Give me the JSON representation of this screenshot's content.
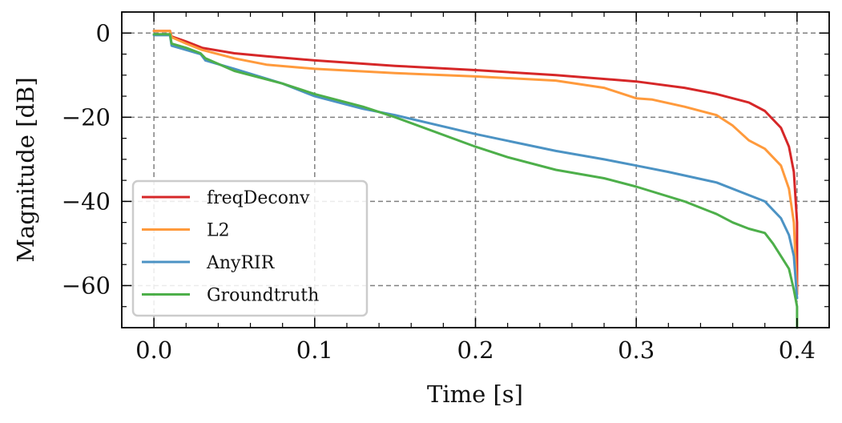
{
  "chart_data": {
    "type": "line",
    "title": "",
    "xlabel": "Time [s]",
    "ylabel": "Magnitude [dB]",
    "xlim": [
      -0.02,
      0.42
    ],
    "ylim": [
      -70,
      5
    ],
    "xticks": [
      0.0,
      0.1,
      0.2,
      0.3,
      0.4
    ],
    "xtick_labels": [
      "0.0",
      "0.1",
      "0.2",
      "0.3",
      "0.4"
    ],
    "yticks": [
      0,
      -20,
      -40,
      -60
    ],
    "ytick_labels": [
      "0",
      "−20",
      "−40",
      "−60"
    ],
    "grid": true,
    "legend_position": "bottom-left",
    "series": [
      {
        "name": "freqDeconv",
        "color": "#d62728",
        "x": [
          0.0,
          0.01,
          0.011,
          0.02,
          0.03,
          0.05,
          0.07,
          0.1,
          0.15,
          0.2,
          0.25,
          0.3,
          0.33,
          0.35,
          0.37,
          0.38,
          0.39,
          0.395,
          0.398,
          0.4,
          0.4
        ],
        "y": [
          0.5,
          0.5,
          -0.8,
          -2,
          -3.5,
          -4.8,
          -5.5,
          -6.5,
          -7.8,
          -8.8,
          -10,
          -11.5,
          -13,
          -14.5,
          -16.5,
          -18.5,
          -22.5,
          -27,
          -33,
          -45,
          -62
        ]
      },
      {
        "name": "L2",
        "color": "#ff9a3c",
        "x": [
          0.0,
          0.01,
          0.011,
          0.02,
          0.03,
          0.05,
          0.07,
          0.1,
          0.15,
          0.2,
          0.25,
          0.28,
          0.3,
          0.31,
          0.33,
          0.35,
          0.36,
          0.37,
          0.38,
          0.39,
          0.395,
          0.398,
          0.4
        ],
        "y": [
          0.5,
          0.5,
          -1,
          -2.5,
          -4,
          -6,
          -7.5,
          -8.5,
          -9.5,
          -10.3,
          -11.3,
          -13,
          -15.5,
          -15.8,
          -17.5,
          -19.5,
          -22,
          -25.5,
          -27.5,
          -31.5,
          -37,
          -45,
          -62
        ]
      },
      {
        "name": "AnyRIR",
        "color": "#4c93c4",
        "x": [
          0.0,
          0.01,
          0.011,
          0.02,
          0.029,
          0.032,
          0.05,
          0.08,
          0.1,
          0.13,
          0.15,
          0.2,
          0.25,
          0.28,
          0.3,
          0.32,
          0.35,
          0.38,
          0.39,
          0.395,
          0.398,
          0.4
        ],
        "y": [
          -0.5,
          -0.5,
          -3,
          -4,
          -5,
          -6.5,
          -8.5,
          -12,
          -15,
          -18,
          -19.5,
          -24,
          -28,
          -30,
          -31.5,
          -33,
          -35.5,
          -40,
          -44,
          -48,
          -53,
          -63
        ]
      },
      {
        "name": "Groundtruth",
        "color": "#4daf4a",
        "x": [
          0.0,
          0.01,
          0.011,
          0.02,
          0.029,
          0.032,
          0.05,
          0.08,
          0.1,
          0.13,
          0.15,
          0.2,
          0.22,
          0.25,
          0.28,
          0.3,
          0.33,
          0.35,
          0.36,
          0.37,
          0.38,
          0.385,
          0.39,
          0.395,
          0.398,
          0.4,
          0.4
        ],
        "y": [
          -0.3,
          -0.3,
          -2.5,
          -3.5,
          -4.8,
          -6,
          -9,
          -12,
          -14.5,
          -17.5,
          -20,
          -27,
          -29.5,
          -32.5,
          -34.5,
          -36.5,
          -40,
          -43,
          -45,
          -46.5,
          -47.5,
          -50,
          -53,
          -56,
          -61,
          -65,
          -70
        ]
      }
    ]
  }
}
